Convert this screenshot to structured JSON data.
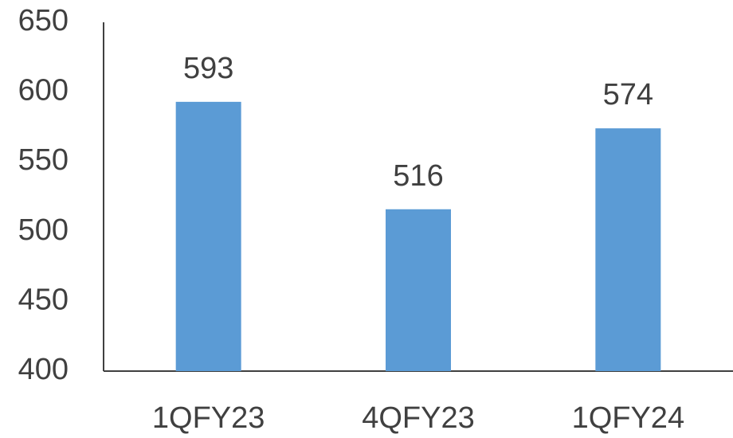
{
  "chart_data": {
    "type": "bar",
    "categories": [
      "1QFY23",
      "4QFY23",
      "1QFY24"
    ],
    "values": [
      593,
      516,
      574
    ],
    "color": "#5b9bd5",
    "ylim": [
      400,
      650
    ],
    "yticks": [
      400,
      450,
      500,
      550,
      600,
      650
    ],
    "grid": false
  }
}
